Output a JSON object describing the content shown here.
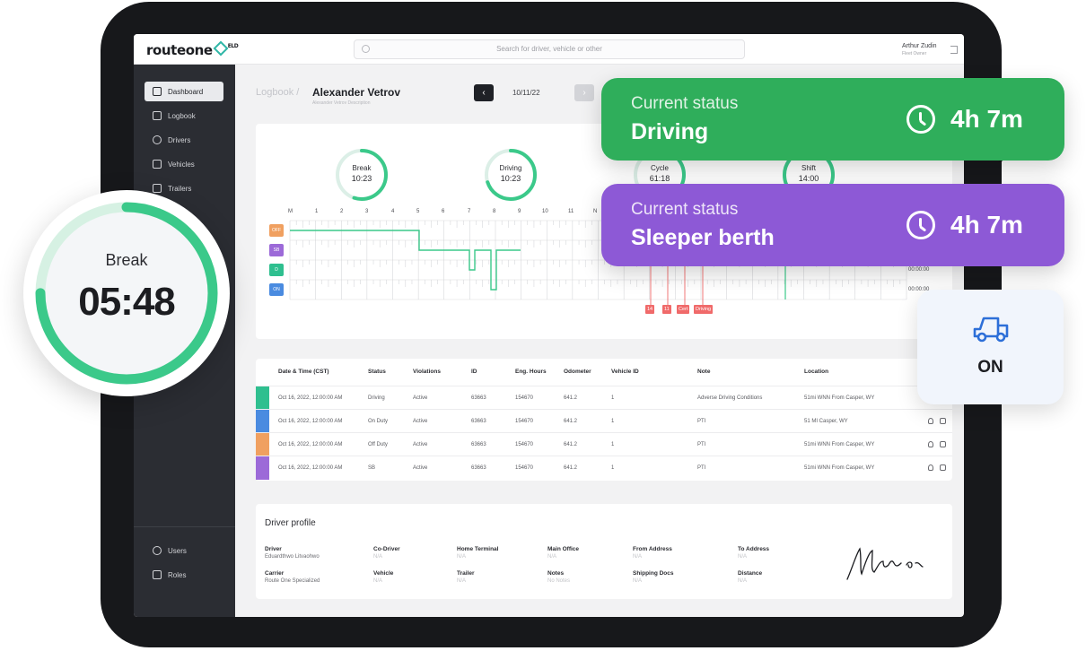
{
  "header": {
    "logo": "routeone",
    "logo_sup": "ELD",
    "search_placeholder": "Search for driver, vehicle or other",
    "user_name": "Arthur Zudin",
    "user_role": "Fleet Owner"
  },
  "sidebar": {
    "items": [
      {
        "label": "Dashboard",
        "icon": "dashboard-icon",
        "active": true
      },
      {
        "label": "Logbook",
        "icon": "logbook-icon"
      },
      {
        "label": "Drivers",
        "icon": "drivers-icon"
      },
      {
        "label": "Vehicles",
        "icon": "vehicles-icon"
      },
      {
        "label": "Trailers",
        "icon": "trailers-icon"
      }
    ],
    "bottom_items": [
      {
        "label": "Users",
        "icon": "users-icon"
      },
      {
        "label": "Roles",
        "icon": "roles-icon"
      }
    ]
  },
  "logbook": {
    "breadcrumb_prev": "Logbook",
    "separator": "/",
    "driver_name": "Alexander Vetrov",
    "driver_sub": "Alexander Vetrov Description",
    "date": "10/11/22",
    "prev_glyph": "‹",
    "next_glyph": "›",
    "chevron": "⌄"
  },
  "timers": [
    {
      "label": "Break",
      "value": "10:23",
      "progress": 0.55
    },
    {
      "label": "Driving",
      "value": "10:23",
      "progress": 0.7
    },
    {
      "label": "Cycle",
      "value": "61:18",
      "progress": 0.4
    },
    {
      "label": "Shift",
      "value": "14:00",
      "progress": 0.85
    }
  ],
  "hours_axis": [
    "M",
    "1",
    "2",
    "3",
    "4",
    "5",
    "6",
    "7",
    "8",
    "9",
    "10",
    "11",
    "N"
  ],
  "duty_rows": [
    {
      "tag": "OFF",
      "color": "#f0a060",
      "total": ""
    },
    {
      "tag": "SB",
      "color": "#9c6ad8",
      "total": ""
    },
    {
      "tag": "D",
      "color": "#2fbf8f",
      "total": "00:00:00"
    },
    {
      "tag": "ON",
      "color": "#4a8be0",
      "total": "00:00:00"
    }
  ],
  "events": [
    "14",
    "11",
    "Cert",
    "Driving"
  ],
  "table": {
    "headers": [
      "Date & Time (CST)",
      "Status",
      "Violations",
      "ID",
      "Eng. Hours",
      "Odometer",
      "Vehicle ID",
      "Note",
      "Location"
    ],
    "rows": [
      {
        "color": "#2fbf8f",
        "cells": [
          "Oct 16, 2022, 12:00:00 AM",
          "Driving",
          "Active",
          "63663",
          "154670",
          "641.2",
          "1",
          "Adverse Driving Conditions",
          "51mi WNN From Casper, WY"
        ],
        "actions": false
      },
      {
        "color": "#4a8be0",
        "cells": [
          "Oct 16, 2022, 12:00:00 AM",
          "On Duty",
          "Active",
          "63663",
          "154670",
          "641.2",
          "1",
          "PTI",
          "51 MI Casper, WY"
        ],
        "actions": true
      },
      {
        "color": "#f0a060",
        "cells": [
          "Oct 16, 2022, 12:00:00 AM",
          "Off Duty",
          "Active",
          "63663",
          "154670",
          "641.2",
          "1",
          "PTI",
          "51mi WNN From Casper, WY"
        ],
        "actions": true
      },
      {
        "color": "#9c6ad8",
        "cells": [
          "Oct 16, 2022, 12:00:00 AM",
          "SB",
          "Active",
          "63663",
          "154670",
          "641.2",
          "1",
          "PTI",
          "51mi WNN From Casper, WY"
        ],
        "actions": true
      }
    ]
  },
  "profile": {
    "title": "Driver profile",
    "fields": [
      {
        "label": "Driver",
        "value": "Eduardthwo Litvaohwo"
      },
      {
        "label": "Co-Driver",
        "value": "N/A"
      },
      {
        "label": "Home Terminal",
        "value": "N/A"
      },
      {
        "label": "Main Office",
        "value": "N/A"
      },
      {
        "label": "From Address",
        "value": "N/A"
      },
      {
        "label": "To Address",
        "value": "N/A"
      },
      {
        "label": "Carrier",
        "value": "Route One Specialized"
      },
      {
        "label": "Vehicle",
        "value": "N/A"
      },
      {
        "label": "Trailer",
        "value": "N/A"
      },
      {
        "label": "Notes",
        "value": "No Notes"
      },
      {
        "label": "Shipping Docs",
        "value": "N/A"
      },
      {
        "label": "Distance",
        "value": "N/A"
      }
    ]
  },
  "break_widget": {
    "label": "Break",
    "time": "05:48",
    "progress": 0.75,
    "color": "#3bc98a"
  },
  "status_cards": [
    {
      "label": "Current status",
      "value": "Driving",
      "time": "4h 7m",
      "color": "#2fae5b"
    },
    {
      "label": "Current status",
      "value": "Sleeper berth",
      "time": "4h 7m",
      "color": "#8d59d6"
    }
  ],
  "vehicle_status": {
    "label": "ON",
    "icon": "truck-icon",
    "color": "#2d6fd8"
  }
}
